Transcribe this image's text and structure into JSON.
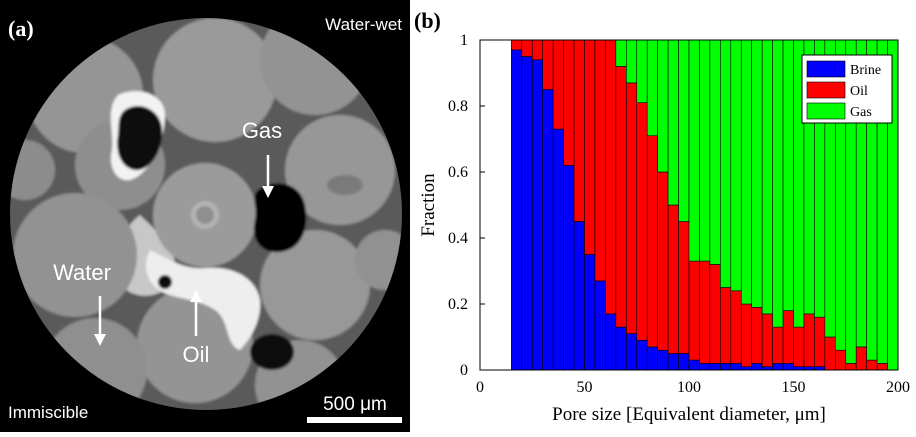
{
  "panel_a": {
    "label": "(a)",
    "wettability": "Water-wet",
    "regime": "Immiscible",
    "annotations": [
      {
        "key": "gas",
        "text": "Gas"
      },
      {
        "key": "water",
        "text": "Water"
      },
      {
        "key": "oil",
        "text": "Oil"
      }
    ],
    "scale_bar": "500 μm"
  },
  "panel_b": {
    "label": "(b)",
    "colors": {
      "brine": "#0000ff",
      "oil": "#ff0000",
      "gas": "#00ff00"
    }
  },
  "chart_data": {
    "type": "bar",
    "stacked": true,
    "xlabel": "Pore size [Equivalent diameter, μm]",
    "ylabel": "Fraction",
    "xlim": [
      0,
      200
    ],
    "ylim": [
      0,
      1
    ],
    "xticks": [
      "0",
      "50",
      "100",
      "150",
      "200"
    ],
    "yticks": [
      "0",
      "0.2",
      "0.4",
      "0.6",
      "0.8",
      "1"
    ],
    "bin_width": 5,
    "x": [
      17.5,
      22.5,
      27.5,
      32.5,
      37.5,
      42.5,
      47.5,
      52.5,
      57.5,
      62.5,
      67.5,
      72.5,
      77.5,
      82.5,
      87.5,
      92.5,
      97.5,
      102.5,
      107.5,
      112.5,
      117.5,
      122.5,
      127.5,
      132.5,
      137.5,
      142.5,
      147.5,
      152.5,
      157.5,
      162.5,
      167.5,
      172.5,
      177.5,
      182.5,
      187.5,
      192.5,
      197.5
    ],
    "legend_position": "top-right",
    "series": [
      {
        "name": "Brine",
        "color": "#0000ff",
        "values": [
          0.97,
          0.95,
          0.94,
          0.85,
          0.73,
          0.62,
          0.45,
          0.35,
          0.27,
          0.17,
          0.13,
          0.11,
          0.09,
          0.07,
          0.06,
          0.05,
          0.05,
          0.03,
          0.02,
          0.02,
          0.02,
          0.02,
          0.01,
          0.02,
          0.01,
          0.02,
          0.02,
          0.01,
          0.01,
          0.01,
          0.0,
          0.0,
          0.0,
          0.0,
          0.0,
          0.0,
          0.0
        ]
      },
      {
        "name": "Oil",
        "color": "#ff0000",
        "values": [
          0.03,
          0.05,
          0.06,
          0.15,
          0.27,
          0.38,
          0.55,
          0.65,
          0.73,
          0.83,
          0.79,
          0.76,
          0.72,
          0.64,
          0.54,
          0.45,
          0.4,
          0.3,
          0.31,
          0.3,
          0.23,
          0.22,
          0.19,
          0.17,
          0.16,
          0.11,
          0.16,
          0.12,
          0.16,
          0.15,
          0.1,
          0.06,
          0.02,
          0.07,
          0.03,
          0.02,
          0.0
        ]
      },
      {
        "name": "Gas",
        "color": "#00ff00",
        "values": [
          0.0,
          0.0,
          0.0,
          0.0,
          0.0,
          0.0,
          0.0,
          0.0,
          0.0,
          0.0,
          0.08,
          0.13,
          0.19,
          0.29,
          0.4,
          0.5,
          0.55,
          0.67,
          0.67,
          0.68,
          0.75,
          0.76,
          0.8,
          0.81,
          0.83,
          0.87,
          0.82,
          0.87,
          0.83,
          0.84,
          0.9,
          0.94,
          0.98,
          0.93,
          0.97,
          0.98,
          1.0
        ]
      }
    ]
  }
}
